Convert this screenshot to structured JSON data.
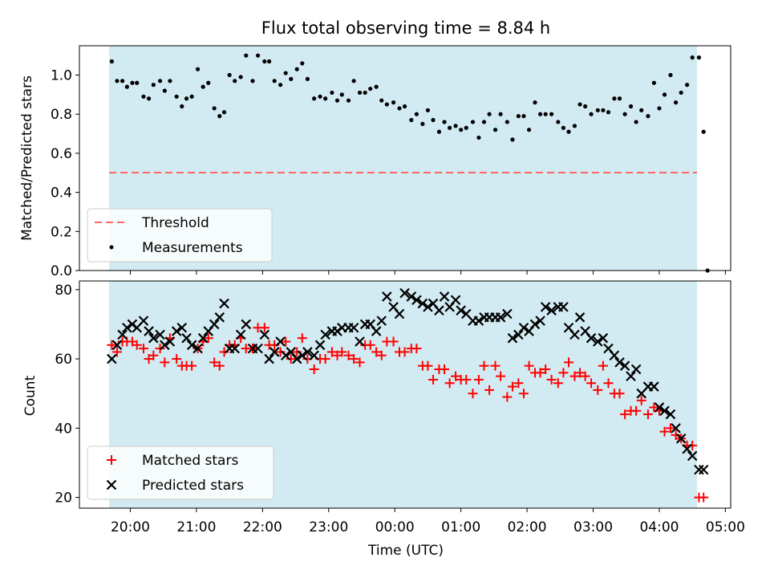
{
  "figure": {
    "title": "Flux total observing time = 8.84 h"
  },
  "chart_data": [
    {
      "type": "scatter",
      "title": "Flux total observing time = 8.84 h",
      "xlabel": "",
      "ylabel": "Matched/Predicted stars",
      "ylim": [
        0.0,
        1.15
      ],
      "yticks": [
        "0.0",
        "0.2",
        "0.4",
        "0.6",
        "0.8",
        "1.0"
      ],
      "x_axis": "time of day, decimal hours (24 = 00:00 next day)",
      "xlim": [
        19.23,
        29.08
      ],
      "shaded_span": [
        19.72,
        28.55
      ],
      "shade_color": "#add8e6",
      "threshold": {
        "name": "Threshold",
        "y": 0.5,
        "x_start": 19.72,
        "x_end": 28.55,
        "color": "#ff6666"
      },
      "legend_position": "lower-left",
      "series": [
        {
          "name": "Measurements",
          "color": "#000000",
          "marker": "dot",
          "x": [
            19.72,
            19.8,
            19.88,
            19.95,
            20.03,
            20.1,
            20.2,
            20.28,
            20.35,
            20.45,
            20.52,
            20.6,
            20.7,
            20.78,
            20.85,
            20.93,
            21.02,
            21.1,
            21.18,
            21.27,
            21.35,
            21.42,
            21.5,
            21.58,
            21.67,
            21.75,
            21.85,
            21.93,
            22.03,
            22.1,
            22.18,
            22.27,
            22.35,
            22.43,
            22.52,
            22.6,
            22.68,
            22.78,
            22.87,
            22.95,
            23.05,
            23.13,
            23.2,
            23.3,
            23.38,
            23.47,
            23.55,
            23.63,
            23.72,
            23.8,
            23.88,
            23.98,
            24.07,
            24.15,
            24.25,
            24.33,
            24.42,
            24.5,
            24.58,
            24.67,
            24.75,
            24.83,
            24.92,
            25.0,
            25.08,
            25.18,
            25.27,
            25.35,
            25.43,
            25.52,
            25.6,
            25.7,
            25.78,
            25.87,
            25.95,
            26.03,
            26.12,
            26.2,
            26.28,
            26.37,
            26.47,
            26.55,
            26.63,
            26.72,
            26.8,
            26.88,
            26.97,
            27.07,
            27.15,
            27.23,
            27.32,
            27.4,
            27.48,
            27.57,
            27.65,
            27.73,
            27.83,
            27.92,
            28.0,
            28.08,
            28.17,
            28.25,
            28.33,
            28.42,
            28.5,
            28.6,
            28.67
          ],
          "y": [
            1.07,
            0.97,
            0.97,
            0.94,
            0.96,
            0.96,
            0.89,
            0.88,
            0.95,
            0.97,
            0.92,
            0.97,
            0.89,
            0.84,
            0.88,
            0.89,
            1.03,
            0.94,
            0.96,
            0.83,
            0.79,
            0.81,
            1.0,
            0.97,
            0.99,
            1.1,
            0.97,
            1.1,
            1.07,
            1.07,
            0.97,
            0.95,
            1.01,
            0.98,
            1.03,
            1.06,
            0.98,
            0.88,
            0.89,
            0.88,
            0.91,
            0.87,
            0.9,
            0.87,
            0.97,
            0.91,
            0.91,
            0.93,
            0.94,
            0.87,
            0.85,
            0.86,
            0.83,
            0.84,
            0.77,
            0.8,
            0.75,
            0.82,
            0.77,
            0.71,
            0.76,
            0.73,
            0.74,
            0.72,
            0.73,
            0.76,
            0.68,
            0.76,
            0.8,
            0.72,
            0.8,
            0.76,
            0.67,
            0.79,
            0.79,
            0.72,
            0.86,
            0.8,
            0.8,
            0.8,
            0.76,
            0.73,
            0.71,
            0.74,
            0.85,
            0.84,
            0.8,
            0.82,
            0.82,
            0.81,
            0.88,
            0.88,
            0.8,
            0.84,
            0.76,
            0.82,
            0.79,
            0.96,
            0.83,
            0.9,
            1.0,
            0.86,
            0.91,
            0.95,
            1.09,
            1.09,
            0.71
          ]
        },
        {
          "name": "",
          "color": "#000000",
          "marker": "dot",
          "x": [
            28.73
          ],
          "y": [
            0.0
          ]
        }
      ]
    },
    {
      "type": "scatter",
      "title": "",
      "xlabel": "Time (UTC)",
      "ylabel": "Count",
      "ylim": [
        16.9,
        82.5
      ],
      "yticks": [
        "20",
        "40",
        "60",
        "80"
      ],
      "x_axis": "time of day, decimal hours (24 = 00:00 next day)",
      "xlim": [
        19.23,
        29.08
      ],
      "xticks": [
        {
          "x": 20,
          "label": "20:00"
        },
        {
          "x": 21,
          "label": "21:00"
        },
        {
          "x": 22,
          "label": "22:00"
        },
        {
          "x": 23,
          "label": "23:00"
        },
        {
          "x": 24,
          "label": "00:00"
        },
        {
          "x": 25,
          "label": "01:00"
        },
        {
          "x": 26,
          "label": "02:00"
        },
        {
          "x": 27,
          "label": "03:00"
        },
        {
          "x": 28,
          "label": "04:00"
        },
        {
          "x": 29,
          "label": "05:00"
        }
      ],
      "shaded_span": [
        19.72,
        28.55
      ],
      "shade_color": "#add8e6",
      "legend_position": "lower-left",
      "series": [
        {
          "name": "Matched stars",
          "color": "#ff0000",
          "marker": "plus",
          "x": [
            19.72,
            19.8,
            19.88,
            19.95,
            20.03,
            20.1,
            20.2,
            20.28,
            20.35,
            20.45,
            20.52,
            20.6,
            20.7,
            20.78,
            20.85,
            20.93,
            21.02,
            21.1,
            21.18,
            21.27,
            21.35,
            21.42,
            21.5,
            21.58,
            21.67,
            21.75,
            21.85,
            21.93,
            22.03,
            22.1,
            22.18,
            22.27,
            22.35,
            22.43,
            22.52,
            22.6,
            22.68,
            22.78,
            22.87,
            22.95,
            23.05,
            23.13,
            23.2,
            23.3,
            23.38,
            23.47,
            23.55,
            23.63,
            23.72,
            23.8,
            23.88,
            23.98,
            24.07,
            24.15,
            24.25,
            24.33,
            24.42,
            24.5,
            24.58,
            24.67,
            24.75,
            24.83,
            24.92,
            25.0,
            25.08,
            25.18,
            25.27,
            25.35,
            25.43,
            25.52,
            25.6,
            25.7,
            25.78,
            25.87,
            25.95,
            26.03,
            26.12,
            26.2,
            26.28,
            26.37,
            26.47,
            26.55,
            26.63,
            26.72,
            26.8,
            26.88,
            26.97,
            27.07,
            27.15,
            27.23,
            27.32,
            27.4,
            27.48,
            27.57,
            27.65,
            27.73,
            27.83,
            27.92,
            28.0,
            28.08,
            28.17,
            28.25,
            28.33,
            28.42,
            28.5,
            28.6,
            28.67
          ],
          "y": [
            64,
            62,
            65,
            65,
            65,
            64,
            63,
            60,
            61,
            63,
            59,
            66,
            60,
            58,
            58,
            58,
            63,
            65,
            66,
            59,
            58,
            62,
            64,
            64,
            66,
            63,
            63,
            69,
            69,
            64,
            64,
            62,
            65,
            60,
            62,
            66,
            60,
            57,
            60,
            60,
            62,
            61,
            62,
            61,
            60,
            59,
            64,
            64,
            62,
            61,
            65,
            65,
            62,
            62,
            63,
            63,
            58,
            58,
            54,
            57,
            57,
            53,
            55,
            54,
            54,
            50,
            54,
            58,
            51,
            58,
            55,
            49,
            52,
            53,
            50,
            58,
            56,
            56,
            57,
            54,
            53,
            56,
            59,
            55,
            56,
            55,
            53,
            51,
            58,
            53,
            50,
            50,
            44,
            45,
            45,
            48,
            44,
            46,
            45,
            39,
            40,
            38,
            37,
            35,
            35,
            20,
            20
          ]
        },
        {
          "name": "Predicted stars",
          "color": "#000000",
          "marker": "x",
          "x": [
            19.72,
            19.8,
            19.88,
            19.95,
            20.03,
            20.1,
            20.2,
            20.28,
            20.35,
            20.45,
            20.52,
            20.6,
            20.7,
            20.78,
            20.85,
            20.93,
            21.02,
            21.1,
            21.18,
            21.27,
            21.35,
            21.42,
            21.5,
            21.58,
            21.67,
            21.75,
            21.85,
            21.93,
            22.03,
            22.1,
            22.18,
            22.27,
            22.35,
            22.43,
            22.52,
            22.6,
            22.68,
            22.78,
            22.87,
            22.95,
            23.05,
            23.13,
            23.2,
            23.3,
            23.38,
            23.47,
            23.55,
            23.63,
            23.72,
            23.8,
            23.88,
            23.98,
            24.07,
            24.15,
            24.25,
            24.33,
            24.42,
            24.5,
            24.58,
            24.67,
            24.75,
            24.83,
            24.92,
            25.0,
            25.08,
            25.18,
            25.27,
            25.35,
            25.43,
            25.52,
            25.6,
            25.7,
            25.78,
            25.87,
            25.95,
            26.03,
            26.12,
            26.2,
            26.28,
            26.37,
            26.47,
            26.55,
            26.63,
            26.72,
            26.8,
            26.88,
            26.97,
            27.07,
            27.15,
            27.23,
            27.32,
            27.4,
            27.48,
            27.57,
            27.65,
            27.73,
            27.83,
            27.92,
            28.0,
            28.08,
            28.17,
            28.25,
            28.33,
            28.42,
            28.5,
            28.6,
            28.67
          ],
          "y": [
            60,
            64,
            67,
            69,
            70,
            69,
            71,
            68,
            66,
            67,
            64,
            65,
            68,
            69,
            66,
            64,
            63,
            66,
            68,
            70,
            72,
            76,
            63,
            63,
            67,
            70,
            63,
            63,
            67,
            60,
            62,
            65,
            61,
            62,
            60,
            61,
            62,
            61,
            64,
            67,
            68,
            68,
            69,
            69,
            69,
            65,
            70,
            70,
            68,
            71,
            78,
            75,
            73,
            79,
            78,
            77,
            76,
            75,
            76,
            74,
            78,
            75,
            77,
            74,
            73,
            71,
            71,
            72,
            72,
            72,
            72,
            73,
            66,
            67,
            69,
            68,
            70,
            71,
            75,
            74,
            75,
            75,
            69,
            67,
            72,
            68,
            66,
            65,
            66,
            63,
            61,
            59,
            58,
            55,
            57,
            50,
            52,
            52,
            46,
            45,
            44,
            40,
            37,
            34,
            32,
            28,
            28
          ]
        }
      ]
    }
  ]
}
